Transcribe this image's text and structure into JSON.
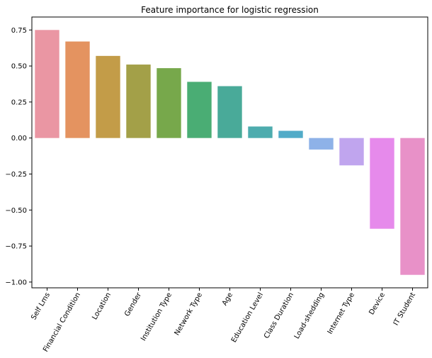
{
  "chart_data": {
    "type": "bar",
    "title": "Feature importance for logistic regression",
    "xlabel": "",
    "ylabel": "",
    "ylim": [
      -1.04,
      0.84
    ],
    "yticks": [
      -1.0,
      -0.75,
      -0.5,
      -0.25,
      0.0,
      0.25,
      0.5,
      0.75
    ],
    "ytick_labels": [
      "−1.00",
      "−0.75",
      "−0.50",
      "−0.25",
      "0.00",
      "0.25",
      "0.50",
      "0.75"
    ],
    "categories": [
      "Self Lms",
      "Financial Condition",
      "Location",
      "Gender",
      "Institution Type",
      "Network Type",
      "Age",
      "Education Level",
      "Class Duration",
      "Load-shedding",
      "Internet Type",
      "Device",
      "IT Student"
    ],
    "values": [
      0.75,
      0.67,
      0.57,
      0.51,
      0.485,
      0.39,
      0.36,
      0.08,
      0.05,
      -0.08,
      -0.19,
      -0.63,
      -0.95
    ],
    "colors": [
      "#ea96a3",
      "#e49360",
      "#c39c48",
      "#a3a048",
      "#77a84b",
      "#4aad74",
      "#49aa99",
      "#4dacae",
      "#51abc8",
      "#8eb2e8",
      "#c0a5ee",
      "#e68aeb",
      "#e891c8"
    ],
    "grid": false,
    "legend": "none"
  }
}
